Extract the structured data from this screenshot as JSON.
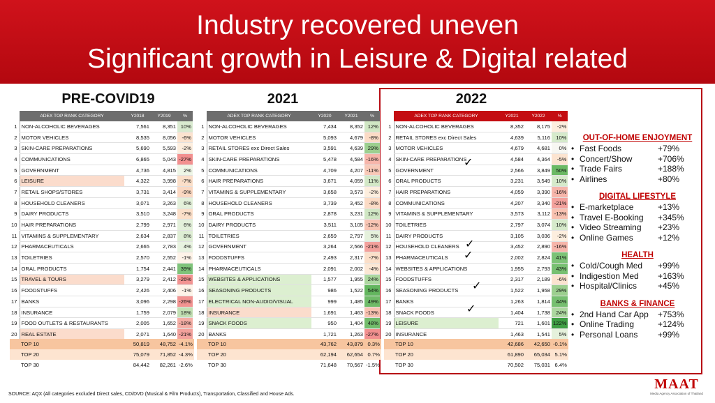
{
  "title": {
    "line1": "Industry recovered uneven",
    "line2": "Significant growth in Leisure & Digital related"
  },
  "headings": [
    "PRE-COVID19",
    "2021",
    "2022"
  ],
  "tables": [
    {
      "headers": [
        "ADEX TOP RANK CATEGORY",
        "Y2018",
        "Y2019",
        "%"
      ],
      "rows": [
        {
          "rank": "1",
          "cat": "NON-ALCOHOLIC BEVERAGES",
          "a": "7,561",
          "b": "8,351",
          "pct": "10%",
          "pc": "#d9ead0",
          "hl": ""
        },
        {
          "rank": "2",
          "cat": "MOTOR VEHICLES",
          "a": "8,535",
          "b": "8,056",
          "pct": "-6%",
          "pc": "#fbe3cf",
          "hl": ""
        },
        {
          "rank": "3",
          "cat": "SKIN-CARE PREPARATIONS",
          "a": "5,690",
          "b": "5,593",
          "pct": "-2%",
          "pc": "#fdeede",
          "hl": ""
        },
        {
          "rank": "4",
          "cat": "COMMUNICATIONS",
          "a": "6,865",
          "b": "5,043",
          "pct": "-27%",
          "pc": "#f2908f",
          "hl": ""
        },
        {
          "rank": "5",
          "cat": "GOVERNMENT",
          "a": "4,736",
          "b": "4,815",
          "pct": "2%",
          "pc": "#eef6e6",
          "hl": ""
        },
        {
          "rank": "6",
          "cat": "LEISURE",
          "a": "4,322",
          "b": "3,998",
          "pct": "-7%",
          "pc": "#fbdfc9",
          "hl": "org"
        },
        {
          "rank": "7",
          "cat": "RETAIL SHOPS/STORES",
          "a": "3,731",
          "b": "3,414",
          "pct": "-9%",
          "pc": "#fad8c2",
          "hl": ""
        },
        {
          "rank": "8",
          "cat": "HOUSEHOLD CLEANERS",
          "a": "3,071",
          "b": "3,263",
          "pct": "6%",
          "pc": "#e3f0da",
          "hl": ""
        },
        {
          "rank": "9",
          "cat": "DAIRY PRODUCTS",
          "a": "3,510",
          "b": "3,248",
          "pct": "-7%",
          "pc": "#fbdfc9",
          "hl": ""
        },
        {
          "rank": "10",
          "cat": "HAIR PREPARATIONS",
          "a": "2,799",
          "b": "2,971",
          "pct": "6%",
          "pc": "#e3f0da",
          "hl": ""
        },
        {
          "rank": "11",
          "cat": "VITAMINS & SUPPLEMENTARY",
          "a": "2,634",
          "b": "2,837",
          "pct": "8%",
          "pc": "#deedd4",
          "hl": ""
        },
        {
          "rank": "12",
          "cat": "PHARMACEUTICALS",
          "a": "2,665",
          "b": "2,783",
          "pct": "4%",
          "pc": "#e8f3e0",
          "hl": ""
        },
        {
          "rank": "13",
          "cat": "TOILETRIES",
          "a": "2,570",
          "b": "2,552",
          "pct": "-1%",
          "pc": "#fef3e8",
          "hl": ""
        },
        {
          "rank": "14",
          "cat": "ORAL PRODUCTS",
          "a": "1,754",
          "b": "2,441",
          "pct": "39%",
          "pc": "#7fc37a",
          "hl": ""
        },
        {
          "rank": "15",
          "cat": "TRAVEL & TOURS",
          "a": "3,279",
          "b": "2,412",
          "pct": "-26%",
          "pc": "#f29391",
          "hl": "org"
        },
        {
          "rank": "16",
          "cat": "FOODSTUFFS",
          "a": "2,426",
          "b": "2,406",
          "pct": "-1%",
          "pc": "#fef3e8",
          "hl": ""
        },
        {
          "rank": "17",
          "cat": "BANKS",
          "a": "3,096",
          "b": "2,298",
          "pct": "-26%",
          "pc": "#f29391",
          "hl": ""
        },
        {
          "rank": "18",
          "cat": "INSURANCE",
          "a": "1,759",
          "b": "2,079",
          "pct": "18%",
          "pc": "#c2e0b3",
          "hl": ""
        },
        {
          "rank": "19",
          "cat": "FOOD OUTLETS & RESTAURANTS",
          "a": "2,005",
          "b": "1,652",
          "pct": "-18%",
          "pc": "#f5aea5",
          "hl": ""
        },
        {
          "rank": "20",
          "cat": "REAL ESTATE",
          "a": "2,071",
          "b": "1,640",
          "pct": "-21%",
          "pc": "#f3a19c",
          "hl": "org"
        }
      ],
      "totals": [
        {
          "label": "TOP 10",
          "a": "50,819",
          "b": "48,752",
          "pct": "-4.1%"
        },
        {
          "label": "TOP 20",
          "a": "75,079",
          "b": "71,852",
          "pct": "-4.3%"
        },
        {
          "label": "TOP 30",
          "a": "84,442",
          "b": "82,261",
          "pct": "-2.6%"
        }
      ]
    },
    {
      "headers": [
        "ADEX TOP RANK CATEGORY",
        "Y2020",
        "Y2021",
        "%"
      ],
      "rows": [
        {
          "rank": "1",
          "cat": "NON-ALCOHOLIC BEVERAGES",
          "a": "7,434",
          "b": "8,352",
          "pct": "12%",
          "pc": "#d0e7c4",
          "hl": ""
        },
        {
          "rank": "2",
          "cat": "MOTOR VEHICLES",
          "a": "5,093",
          "b": "4,679",
          "pct": "-8%",
          "pc": "#fbdbc5",
          "hl": ""
        },
        {
          "rank": "3",
          "cat": "RETAIL STORES exc Direct Sales",
          "a": "3,591",
          "b": "4,639",
          "pct": "29%",
          "pc": "#9ccf8f",
          "hl": ""
        },
        {
          "rank": "4",
          "cat": "SKIN-CARE PREPARATIONS",
          "a": "5,478",
          "b": "4,584",
          "pct": "-16%",
          "pc": "#f6b5aa",
          "hl": ""
        },
        {
          "rank": "5",
          "cat": "COMMUNICATIONS",
          "a": "4,709",
          "b": "4,207",
          "pct": "-11%",
          "pc": "#f8c9b8",
          "hl": ""
        },
        {
          "rank": "6",
          "cat": "HAIR PREPARATIONS",
          "a": "3,671",
          "b": "4,059",
          "pct": "11%",
          "pc": "#d3e8c7",
          "hl": ""
        },
        {
          "rank": "7",
          "cat": "VITAMINS & SUPPLEMENTARY",
          "a": "3,658",
          "b": "3,573",
          "pct": "-2%",
          "pc": "#fdeede",
          "hl": ""
        },
        {
          "rank": "8",
          "cat": "HOUSEHOLD CLEANERS",
          "a": "3,739",
          "b": "3,452",
          "pct": "-8%",
          "pc": "#fbdbc5",
          "hl": ""
        },
        {
          "rank": "9",
          "cat": "ORAL PRODUCTS",
          "a": "2,878",
          "b": "3,231",
          "pct": "12%",
          "pc": "#d0e7c4",
          "hl": ""
        },
        {
          "rank": "10",
          "cat": "DAIRY PRODUCTS",
          "a": "3,511",
          "b": "3,105",
          "pct": "-12%",
          "pc": "#f8c5b4",
          "hl": ""
        },
        {
          "rank": "11",
          "cat": "TOILETRIES",
          "a": "2,659",
          "b": "2,797",
          "pct": "5%",
          "pc": "#e5f1dc",
          "hl": ""
        },
        {
          "rank": "12",
          "cat": "GOVERNMENT",
          "a": "3,264",
          "b": "2,566",
          "pct": "-21%",
          "pc": "#f3a19c",
          "hl": ""
        },
        {
          "rank": "13",
          "cat": "FOODSTUFFS",
          "a": "2,493",
          "b": "2,317",
          "pct": "-7%",
          "pc": "#fbdfc9",
          "hl": ""
        },
        {
          "rank": "14",
          "cat": "PHARMACEUTICALS",
          "a": "2,091",
          "b": "2,002",
          "pct": "-4%",
          "pc": "#fce7d4",
          "hl": ""
        },
        {
          "rank": "15",
          "cat": "WEBSITES & APPLICATIONS",
          "a": "1,577",
          "b": "1,955",
          "pct": "24%",
          "pc": "#acd79f",
          "hl": "grn"
        },
        {
          "rank": "16",
          "cat": "SEASONING PRODUCTS",
          "a": "986",
          "b": "1,522",
          "pct": "54%",
          "pc": "#63b65e",
          "hl": "grn"
        },
        {
          "rank": "17",
          "cat": "ELECTRICAL NON-AUDIO/VISUAL",
          "a": "999",
          "b": "1,485",
          "pct": "49%",
          "pc": "#6fbb68",
          "hl": "grn"
        },
        {
          "rank": "18",
          "cat": "INSURANCE",
          "a": "1,691",
          "b": "1,463",
          "pct": "-13%",
          "pc": "#f8c1b0",
          "hl": "org"
        },
        {
          "rank": "19",
          "cat": "SNACK FOODS",
          "a": "950",
          "b": "1,404",
          "pct": "48%",
          "pc": "#72bc6b",
          "hl": "grn"
        },
        {
          "rank": "20",
          "cat": "BANKS",
          "a": "1,721",
          "b": "1,263",
          "pct": "-27%",
          "pc": "#f2908f",
          "hl": ""
        }
      ],
      "totals": [
        {
          "label": "TOP 10",
          "a": "43,762",
          "b": "43,879",
          "pct": "0.3%"
        },
        {
          "label": "TOP 20",
          "a": "62,194",
          "b": "62,654",
          "pct": "0.7%"
        },
        {
          "label": "TOP 30",
          "a": "71,648",
          "b": "70,567",
          "pct": "-1.5%"
        }
      ]
    },
    {
      "headers": [
        "ADEX TOP RANK CATEGORY",
        "Y2021",
        "Y2022",
        "%"
      ],
      "rows": [
        {
          "rank": "1",
          "cat": "NON-ALCOHOLIC BEVERAGES",
          "a": "8,352",
          "b": "8,175",
          "pct": "-2%",
          "pc": "#fdeede",
          "hl": ""
        },
        {
          "rank": "2",
          "cat": "RETAIL STORES exc Direct Sales",
          "a": "4,639",
          "b": "5,116",
          "pct": "10%",
          "pc": "#d6eacb",
          "hl": ""
        },
        {
          "rank": "3",
          "cat": "MOTOR VEHICLES",
          "a": "4,679",
          "b": "4,681",
          "pct": "0%",
          "pc": "#f7f7f2",
          "hl": ""
        },
        {
          "rank": "4",
          "cat": "SKIN-CARE PREPARATIONS",
          "a": "4,584",
          "b": "4,364",
          "pct": "-5%",
          "pc": "#fce4d0",
          "hl": ""
        },
        {
          "rank": "5",
          "cat": "GOVERNMENT",
          "a": "2,566",
          "b": "3,849",
          "pct": "50%",
          "pc": "#6bb964",
          "hl": ""
        },
        {
          "rank": "6",
          "cat": "ORAL PRODUCTS",
          "a": "3,231",
          "b": "3,549",
          "pct": "10%",
          "pc": "#d6eacb",
          "hl": ""
        },
        {
          "rank": "7",
          "cat": "HAIR PREPARATIONS",
          "a": "4,059",
          "b": "3,390",
          "pct": "-16%",
          "pc": "#f6b5aa",
          "hl": ""
        },
        {
          "rank": "8",
          "cat": "COMMUNICATIONS",
          "a": "4,207",
          "b": "3,340",
          "pct": "-21%",
          "pc": "#f3a19c",
          "hl": ""
        },
        {
          "rank": "9",
          "cat": "VITAMINS & SUPPLEMENTARY",
          "a": "3,573",
          "b": "3,112",
          "pct": "-13%",
          "pc": "#f8c1b0",
          "hl": ""
        },
        {
          "rank": "10",
          "cat": "TOILETRIES",
          "a": "2,797",
          "b": "3,074",
          "pct": "10%",
          "pc": "#d6eacb",
          "hl": ""
        },
        {
          "rank": "11",
          "cat": "DAIRY PRODUCTS",
          "a": "3,105",
          "b": "3,036",
          "pct": "-2%",
          "pc": "#fdeede",
          "hl": ""
        },
        {
          "rank": "12",
          "cat": "HOUSEHOLD CLEANERS",
          "a": "3,452",
          "b": "2,890",
          "pct": "-16%",
          "pc": "#f6b5aa",
          "hl": ""
        },
        {
          "rank": "13",
          "cat": "PHARMACEUTICALS",
          "a": "2,002",
          "b": "2,824",
          "pct": "41%",
          "pc": "#7cc276",
          "hl": ""
        },
        {
          "rank": "14",
          "cat": "WEBSITES & APPLICATIONS",
          "a": "1,955",
          "b": "2,793",
          "pct": "43%",
          "pc": "#78c072",
          "hl": ""
        },
        {
          "rank": "15",
          "cat": "FOODSTUFFS",
          "a": "2,317",
          "b": "2,189",
          "pct": "-6%",
          "pc": "#fbe3cf",
          "hl": ""
        },
        {
          "rank": "16",
          "cat": "SEASONING PRODUCTS",
          "a": "1,522",
          "b": "1,958",
          "pct": "29%",
          "pc": "#9ccf8f",
          "hl": ""
        },
        {
          "rank": "17",
          "cat": "BANKS",
          "a": "1,263",
          "b": "1,814",
          "pct": "44%",
          "pc": "#76bf70",
          "hl": ""
        },
        {
          "rank": "18",
          "cat": "SNACK FOODS",
          "a": "1,404",
          "b": "1,738",
          "pct": "24%",
          "pc": "#acd79f",
          "hl": ""
        },
        {
          "rank": "19",
          "cat": "LEISURE",
          "a": "721",
          "b": "1,601",
          "pct": "122%",
          "pc": "#3f9f44",
          "hl": "grn"
        },
        {
          "rank": "20",
          "cat": "INSURANCE",
          "a": "1,463",
          "b": "1,541",
          "pct": "5%",
          "pc": "#e5f1dc",
          "hl": ""
        }
      ],
      "totals": [
        {
          "label": "TOP 10",
          "a": "42,686",
          "b": "42,650",
          "pct": "-0.1%"
        },
        {
          "label": "TOP 20",
          "a": "61,890",
          "b": "65,034",
          "pct": "5.1%"
        },
        {
          "label": "TOP 30",
          "a": "70,502",
          "b": "75,031",
          "pct": "6.4%"
        }
      ]
    }
  ],
  "checkmark": "✓",
  "sections": [
    {
      "title": "OUT-OF-HOME ENJOYMENT",
      "items": [
        {
          "label": "Fast Foods",
          "value": "+79%"
        },
        {
          "label": "Concert/Show",
          "value": "+706%"
        },
        {
          "label": "Trade Fairs",
          "value": "+188%"
        },
        {
          "label": "Airlines",
          "value": "+80%"
        }
      ]
    },
    {
      "title": "DIGITAL LIFESTYLE",
      "items": [
        {
          "label": "E-marketplace",
          "value": "+13%"
        },
        {
          "label": "Travel E-Booking",
          "value": "+345%"
        },
        {
          "label": "Video Streaming",
          "value": "+23%"
        },
        {
          "label": "Online Games",
          "value": "+12%"
        }
      ]
    },
    {
      "title": "HEALTH",
      "items": [
        {
          "label": "Cold/Cough Med",
          "value": "+99%"
        },
        {
          "label": "Indigestion Med",
          "value": "+163%"
        },
        {
          "label": "Hospital/Clinics",
          "value": "+45%"
        }
      ]
    },
    {
      "title": "BANKS & FINANCE",
      "items": [
        {
          "label": "2nd Hand Car App",
          "value": "+753%"
        },
        {
          "label": "Online Trading",
          "value": "+124%"
        },
        {
          "label": "Personal Loans",
          "value": "+99%"
        }
      ]
    }
  ],
  "bullet": "•",
  "source": "SOURCE: AQX (All categories excluded Direct sales, CD/DVD (Musical & Film Products), Transportation, Classified and House Ads.",
  "logo": {
    "mark": "MAAT",
    "subtitle": "Media Agency Association of Thailand"
  },
  "colors": {
    "banner": "#c40d12",
    "accent": "#c00000",
    "table_header_gray": "#6d6d6d",
    "table_header_red": "#c40d12",
    "total_top10": "#f7c59f",
    "total_top20": "#fde4d0"
  }
}
